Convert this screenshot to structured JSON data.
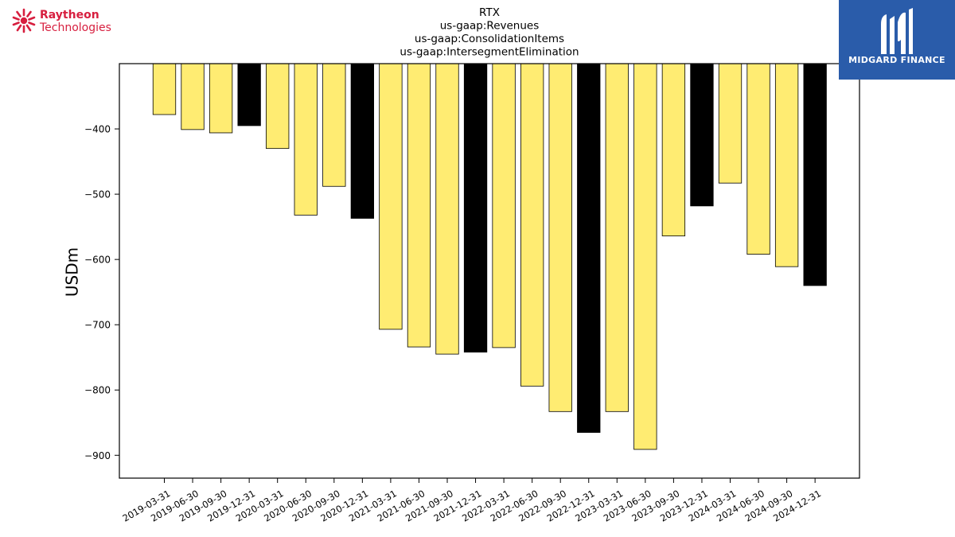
{
  "brands": {
    "left_line1": "Raytheon",
    "left_line2": "Technologies",
    "right_text": "MIDGARD FINANCE"
  },
  "colors": {
    "bar_default": "#ffec72",
    "bar_highlight": "#000000",
    "bar_edge": "#000000",
    "brand_red": "#d71f3f",
    "brand_blue": "#2a5caa"
  },
  "chart_data": {
    "type": "bar",
    "title": [
      "RTX",
      "us-gaap:Revenues",
      "us-gaap:ConsolidationItems",
      "us-gaap:IntersegmentElimination"
    ],
    "xlabel": "",
    "ylabel": "USDm",
    "ylim": [
      -935,
      -300
    ],
    "yticks": [
      -400,
      -500,
      -600,
      -700,
      -800,
      -900
    ],
    "ytick_labels": [
      "−400",
      "−500",
      "−600",
      "−700",
      "−800",
      "−900"
    ],
    "grid": false,
    "categories": [
      "2019-03-31",
      "2019-06-30",
      "2019-09-30",
      "2019-12-31",
      "2020-03-31",
      "2020-06-30",
      "2020-09-30",
      "2020-12-31",
      "2021-03-31",
      "2021-06-30",
      "2021-09-30",
      "2021-12-31",
      "2022-03-31",
      "2022-06-30",
      "2022-09-30",
      "2022-12-31",
      "2023-03-31",
      "2023-06-30",
      "2023-09-30",
      "2023-12-31",
      "2024-03-31",
      "2024-06-30",
      "2024-09-30",
      "2024-12-31"
    ],
    "values": [
      -378,
      -401,
      -406,
      -395,
      -430,
      -532,
      -488,
      -537,
      -707,
      -734,
      -745,
      -742,
      -735,
      -794,
      -833,
      -865,
      -833,
      -891,
      -564,
      -518,
      -483,
      -592,
      -611,
      -640
    ],
    "highlight": [
      false,
      false,
      false,
      true,
      false,
      false,
      false,
      true,
      false,
      false,
      false,
      true,
      false,
      false,
      false,
      true,
      false,
      false,
      false,
      true,
      false,
      false,
      false,
      true
    ]
  }
}
